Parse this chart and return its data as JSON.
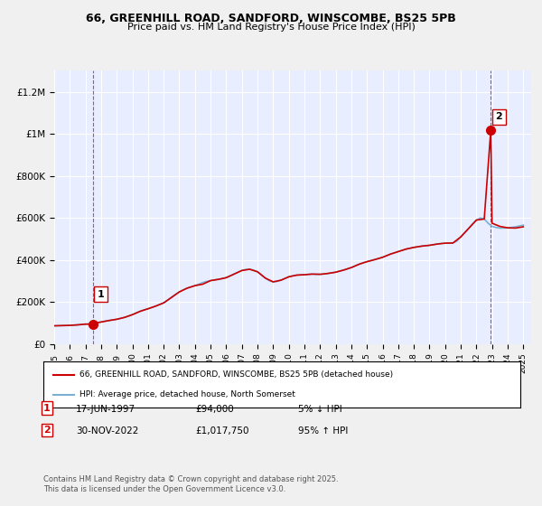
{
  "title1": "66, GREENHILL ROAD, SANDFORD, WINSCOMBE, BS25 5PB",
  "title2": "Price paid vs. HM Land Registry's House Price Index (HPI)",
  "xlabel": "",
  "ylabel": "",
  "ylim": [
    0,
    1300000
  ],
  "yticks": [
    0,
    200000,
    400000,
    600000,
    800000,
    1000000,
    1200000
  ],
  "ytick_labels": [
    "£0",
    "£200K",
    "£400K",
    "£600K",
    "£800K",
    "£1M",
    "£1.2M"
  ],
  "xmin_year": 1995.0,
  "xmax_year": 2025.5,
  "xtick_years": [
    1995,
    1996,
    1997,
    1998,
    1999,
    2000,
    2001,
    2002,
    2003,
    2004,
    2005,
    2006,
    2007,
    2008,
    2009,
    2010,
    2011,
    2012,
    2013,
    2014,
    2015,
    2016,
    2017,
    2018,
    2019,
    2020,
    2021,
    2022,
    2023,
    2024,
    2025
  ],
  "bg_color": "#f0f4ff",
  "plot_bg": "#e8eeff",
  "grid_color": "#ffffff",
  "line1_color": "#cc0000",
  "line2_color": "#7ab0d4",
  "marker_color": "#cc0000",
  "dashed_color": "#cc0000",
  "sale1_year": 1997.458,
  "sale1_price": 94000,
  "sale2_year": 2022.917,
  "sale2_price": 1017750,
  "legend_label1": "66, GREENHILL ROAD, SANDFORD, WINSCOMBE, BS25 5PB (detached house)",
  "legend_label2": "HPI: Average price, detached house, North Somerset",
  "annotation1_label": "1",
  "annotation2_label": "2",
  "note1_num": "1",
  "note1_date": "17-JUN-1997",
  "note1_price": "£94,000",
  "note1_hpi": "5% ↓ HPI",
  "note2_num": "2",
  "note2_date": "30-NOV-2022",
  "note2_price": "£1,017,750",
  "note2_hpi": "95% ↑ HPI",
  "footer": "Contains HM Land Registry data © Crown copyright and database right 2025.\nThis data is licensed under the Open Government Licence v3.0.",
  "hpi_data_years": [
    1995.0,
    1995.25,
    1995.5,
    1995.75,
    1996.0,
    1996.25,
    1996.5,
    1996.75,
    1997.0,
    1997.25,
    1997.5,
    1997.75,
    1998.0,
    1998.25,
    1998.5,
    1998.75,
    1999.0,
    1999.25,
    1999.5,
    1999.75,
    2000.0,
    2000.25,
    2000.5,
    2000.75,
    2001.0,
    2001.25,
    2001.5,
    2001.75,
    2002.0,
    2002.25,
    2002.5,
    2002.75,
    2003.0,
    2003.25,
    2003.5,
    2003.75,
    2004.0,
    2004.25,
    2004.5,
    2004.75,
    2005.0,
    2005.25,
    2005.5,
    2005.75,
    2006.0,
    2006.25,
    2006.5,
    2006.75,
    2007.0,
    2007.25,
    2007.5,
    2007.75,
    2008.0,
    2008.25,
    2008.5,
    2008.75,
    2009.0,
    2009.25,
    2009.5,
    2009.75,
    2010.0,
    2010.25,
    2010.5,
    2010.75,
    2011.0,
    2011.25,
    2011.5,
    2011.75,
    2012.0,
    2012.25,
    2012.5,
    2012.75,
    2013.0,
    2013.25,
    2013.5,
    2013.75,
    2014.0,
    2014.25,
    2014.5,
    2014.75,
    2015.0,
    2015.25,
    2015.5,
    2015.75,
    2016.0,
    2016.25,
    2016.5,
    2016.75,
    2017.0,
    2017.25,
    2017.5,
    2017.75,
    2018.0,
    2018.25,
    2018.5,
    2018.75,
    2019.0,
    2019.25,
    2019.5,
    2019.75,
    2020.0,
    2020.25,
    2020.5,
    2020.75,
    2021.0,
    2021.25,
    2021.5,
    2021.75,
    2022.0,
    2022.25,
    2022.5,
    2022.75,
    2023.0,
    2023.25,
    2023.5,
    2023.75,
    2024.0,
    2024.25,
    2024.5,
    2024.75,
    2025.0
  ],
  "hpi_data_values": [
    87000,
    87500,
    88000,
    88500,
    89000,
    90000,
    91500,
    93000,
    95000,
    97000,
    99000,
    101000,
    105000,
    109000,
    112000,
    115000,
    118000,
    122000,
    127000,
    133000,
    140000,
    148000,
    156000,
    163000,
    168000,
    174000,
    181000,
    188000,
    196000,
    208000,
    222000,
    236000,
    248000,
    258000,
    266000,
    272000,
    278000,
    285000,
    293000,
    298000,
    302000,
    305000,
    308000,
    311000,
    316000,
    324000,
    333000,
    342000,
    350000,
    355000,
    356000,
    352000,
    344000,
    330000,
    314000,
    302000,
    296000,
    298000,
    304000,
    312000,
    320000,
    325000,
    328000,
    330000,
    330000,
    332000,
    333000,
    332000,
    332000,
    333000,
    336000,
    339000,
    342000,
    347000,
    352000,
    358000,
    364000,
    372000,
    380000,
    387000,
    392000,
    397000,
    402000,
    407000,
    413000,
    420000,
    428000,
    434000,
    440000,
    446000,
    452000,
    456000,
    460000,
    463000,
    466000,
    468000,
    470000,
    473000,
    476000,
    479000,
    480000,
    480000,
    481000,
    490000,
    510000,
    530000,
    550000,
    572000,
    590000,
    600000,
    595000,
    575000,
    560000,
    555000,
    552000,
    552000,
    553000,
    555000,
    558000,
    562000,
    566000
  ],
  "red_line_years": [
    1995.0,
    1995.5,
    1996.0,
    1996.5,
    1997.0,
    1997.458,
    1997.5,
    1998.0,
    1998.5,
    1999.0,
    1999.5,
    2000.0,
    2000.5,
    2001.0,
    2001.5,
    2002.0,
    2002.5,
    2003.0,
    2003.5,
    2004.0,
    2004.5,
    2005.0,
    2005.5,
    2006.0,
    2006.5,
    2007.0,
    2007.5,
    2008.0,
    2008.5,
    2009.0,
    2009.5,
    2010.0,
    2010.5,
    2011.0,
    2011.5,
    2012.0,
    2012.5,
    2013.0,
    2013.5,
    2014.0,
    2014.5,
    2015.0,
    2015.5,
    2016.0,
    2016.5,
    2017.0,
    2017.5,
    2018.0,
    2018.5,
    2019.0,
    2019.5,
    2020.0,
    2020.5,
    2021.0,
    2021.5,
    2022.0,
    2022.5,
    2022.917,
    2023.0,
    2023.5,
    2024.0,
    2024.5,
    2025.0
  ],
  "red_line_values": [
    87000,
    88000,
    89000,
    91500,
    95000,
    94000,
    99000,
    105000,
    112000,
    118000,
    127000,
    140000,
    156000,
    168000,
    181000,
    196000,
    222000,
    248000,
    266000,
    278000,
    285000,
    302000,
    308000,
    316000,
    333000,
    350000,
    356000,
    344000,
    314000,
    296000,
    304000,
    320000,
    328000,
    330000,
    333000,
    332000,
    336000,
    342000,
    352000,
    364000,
    380000,
    392000,
    402000,
    413000,
    428000,
    440000,
    452000,
    460000,
    466000,
    470000,
    476000,
    480000,
    481000,
    510000,
    550000,
    590000,
    595000,
    1017750,
    575000,
    560000,
    553000,
    552000,
    558000
  ]
}
